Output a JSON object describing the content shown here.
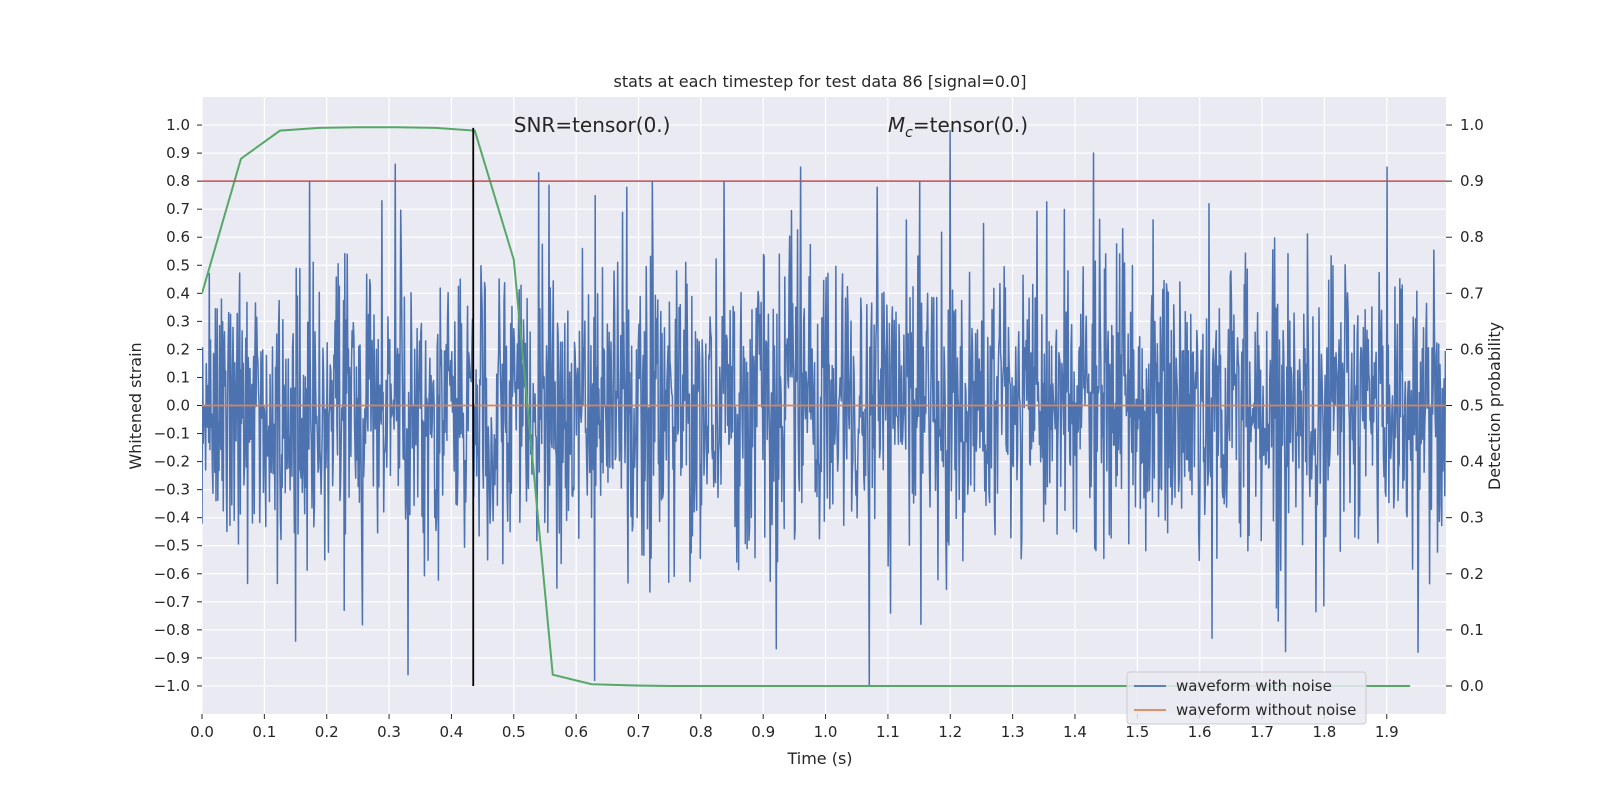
{
  "chart_data": {
    "type": "line",
    "title": "stats at each timestep for test data 86 [signal=0.0]",
    "xlabel": "Time (s)",
    "ylabel_left": "Whitened strain",
    "ylabel_right": "Detection probability",
    "xlim": [
      0.0,
      1.995
    ],
    "ylim_left": [
      -1.1,
      1.1
    ],
    "ylim_right": [
      -0.05,
      1.05
    ],
    "x_ticks": [
      "0.0",
      "0.1",
      "0.2",
      "0.3",
      "0.4",
      "0.5",
      "0.6",
      "0.7",
      "0.8",
      "0.9",
      "1.0",
      "1.1",
      "1.2",
      "1.3",
      "1.4",
      "1.5",
      "1.6",
      "1.7",
      "1.8",
      "1.9"
    ],
    "y_ticks_left": [
      "1.0",
      "0.9",
      "0.8",
      "0.7",
      "0.6",
      "0.5",
      "0.4",
      "0.3",
      "0.2",
      "0.1",
      "0.0",
      "−0.1",
      "−0.2",
      "−0.3",
      "−0.4",
      "−0.5",
      "−0.6",
      "−0.7",
      "−0.8",
      "−0.9",
      "−1.0"
    ],
    "y_ticks_right": [
      "1.0",
      "0.9",
      "0.8",
      "0.7",
      "0.6",
      "0.5",
      "0.4",
      "0.3",
      "0.2",
      "0.1",
      "0.0"
    ],
    "grid": true,
    "legend_position": "lower-right",
    "series": [
      {
        "name": "waveform with noise",
        "axis": "left",
        "color": "#4c72b0",
        "kind": "noise",
        "n_points": 2048,
        "range": [
          -1.0,
          1.0
        ],
        "spikes": [
          {
            "x": 0.31,
            "y": 0.86
          },
          {
            "x": 0.54,
            "y": 0.83
          },
          {
            "x": 0.96,
            "y": 0.85
          },
          {
            "x": 1.2,
            "y": 0.98
          },
          {
            "x": 1.43,
            "y": 0.9
          },
          {
            "x": 1.9,
            "y": 0.85
          },
          {
            "x": 0.33,
            "y": -0.96
          },
          {
            "x": 0.63,
            "y": -0.98
          },
          {
            "x": 1.07,
            "y": -1.0
          },
          {
            "x": 0.15,
            "y": -0.84
          },
          {
            "x": 1.62,
            "y": -0.83
          },
          {
            "x": 1.95,
            "y": -0.88
          }
        ]
      },
      {
        "name": "waveform without noise",
        "axis": "left",
        "color": "#dd8452",
        "x": [
          0.0,
          1.995
        ],
        "y": [
          0.0,
          0.0
        ]
      },
      {
        "name": "",
        "axis": "right",
        "color": "#55a868",
        "x": [
          0.0,
          0.0625,
          0.125,
          0.1875,
          0.25,
          0.3125,
          0.375,
          0.4375,
          0.5,
          0.5625,
          0.625,
          0.6875,
          0.75,
          1.0,
          1.25,
          1.5,
          1.75,
          1.9375
        ],
        "y": [
          0.7,
          0.94,
          0.99,
          0.995,
          0.996,
          0.996,
          0.995,
          0.99,
          0.76,
          0.02,
          0.003,
          0.001,
          0.0,
          0.0,
          0.0,
          0.0,
          0.0,
          0.0
        ]
      }
    ],
    "reference_lines": [
      {
        "orientation": "horizontal",
        "axis": "right",
        "value": 0.9,
        "color": "#c44e52"
      },
      {
        "orientation": "vertical",
        "value": 0.435,
        "color": "#000000",
        "y_range_left": [
          -1.0,
          0.99
        ]
      }
    ],
    "annotations": [
      {
        "text": "SNR=tensor(0.)",
        "x": 0.5,
        "y": 1.0
      },
      {
        "text_math": "M",
        "text_sub": "c",
        "text_rest": "=tensor(0.)",
        "x": 1.1,
        "y": 1.0
      }
    ]
  }
}
